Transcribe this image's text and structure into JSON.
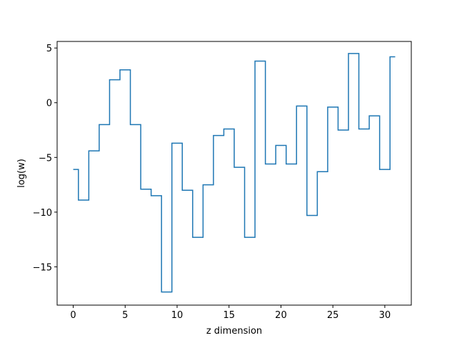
{
  "chart_data": {
    "type": "line",
    "drawstyle": "steps-mid",
    "title": "",
    "xlabel": "z dimension",
    "ylabel": "log(w)",
    "xlim": [
      -1.55,
      32.55
    ],
    "ylim": [
      -18.5,
      5.6
    ],
    "xticks": [
      0,
      5,
      10,
      15,
      20,
      25,
      30
    ],
    "yticks": [
      5,
      0,
      -5,
      -10,
      -15
    ],
    "ytick_labels": [
      "5",
      "0",
      "−5",
      "−10",
      "−15"
    ],
    "grid": false,
    "series": [
      {
        "color": "#1f77b4",
        "x": [
          0,
          1,
          2,
          3,
          4,
          5,
          6,
          7,
          8,
          9,
          10,
          11,
          12,
          13,
          14,
          15,
          16,
          17,
          18,
          19,
          20,
          21,
          22,
          23,
          24,
          25,
          26,
          27,
          28,
          29,
          30,
          31
        ],
        "values": [
          -6.1,
          -8.9,
          -4.4,
          -2.0,
          2.1,
          3.0,
          -2.0,
          -7.9,
          -8.5,
          -17.3,
          -3.7,
          -8.0,
          -12.3,
          -7.5,
          -3.0,
          -2.4,
          -5.9,
          -12.3,
          3.8,
          -5.6,
          -3.9,
          -5.6,
          -0.3,
          -10.3,
          -6.3,
          -0.4,
          -2.5,
          4.5,
          -2.4,
          -1.2,
          -6.1,
          4.2
        ]
      }
    ]
  }
}
